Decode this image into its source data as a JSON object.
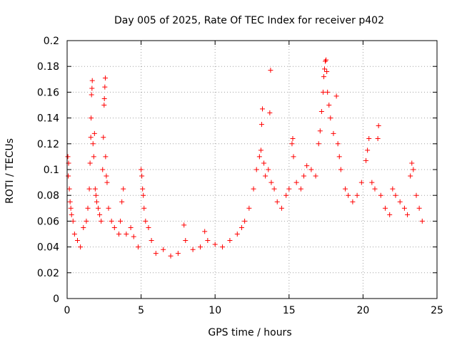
{
  "chart_data": {
    "type": "scatter",
    "title": "Day 005 of 2025, Rate Of TEC Index for receiver p402",
    "xlabel": "GPS time / hours",
    "ylabel": "ROTI / TECUs",
    "xlim": [
      0,
      25
    ],
    "ylim": [
      0,
      0.2
    ],
    "x_ticks": [
      "0",
      "5",
      "10",
      "15",
      "20",
      "25"
    ],
    "y_ticks": [
      "0",
      "0.02",
      "0.04",
      "0.06",
      "0.08",
      "0.1",
      "0.12",
      "0.14",
      "0.16",
      "0.18",
      "0.2"
    ],
    "grid": true,
    "marker": "plus",
    "color": "#ff0000",
    "series": [
      {
        "points": [
          [
            0.05,
            0.11
          ],
          [
            0.08,
            0.095
          ],
          [
            0.1,
            0.105
          ],
          [
            0.15,
            0.085
          ],
          [
            0.2,
            0.075
          ],
          [
            0.25,
            0.07
          ],
          [
            0.3,
            0.065
          ],
          [
            0.4,
            0.06
          ],
          [
            0.5,
            0.05
          ],
          [
            0.7,
            0.045
          ],
          [
            0.9,
            0.04
          ],
          [
            1.1,
            0.055
          ],
          [
            1.3,
            0.06
          ],
          [
            1.4,
            0.07
          ],
          [
            1.5,
            0.085
          ],
          [
            1.55,
            0.105
          ],
          [
            1.6,
            0.125
          ],
          [
            1.62,
            0.14
          ],
          [
            1.65,
            0.158
          ],
          [
            1.68,
            0.163
          ],
          [
            1.7,
            0.169
          ],
          [
            1.75,
            0.12
          ],
          [
            1.8,
            0.11
          ],
          [
            1.85,
            0.128
          ],
          [
            1.9,
            0.085
          ],
          [
            1.95,
            0.08
          ],
          [
            2.0,
            0.075
          ],
          [
            2.1,
            0.07
          ],
          [
            2.2,
            0.065
          ],
          [
            2.3,
            0.06
          ],
          [
            2.4,
            0.1
          ],
          [
            2.45,
            0.125
          ],
          [
            2.5,
            0.15
          ],
          [
            2.52,
            0.155
          ],
          [
            2.55,
            0.164
          ],
          [
            2.58,
            0.171
          ],
          [
            2.6,
            0.11
          ],
          [
            2.65,
            0.095
          ],
          [
            2.7,
            0.09
          ],
          [
            2.8,
            0.07
          ],
          [
            3.0,
            0.06
          ],
          [
            3.2,
            0.055
          ],
          [
            3.5,
            0.05
          ],
          [
            3.6,
            0.06
          ],
          [
            3.7,
            0.075
          ],
          [
            3.8,
            0.085
          ],
          [
            4.0,
            0.05
          ],
          [
            4.3,
            0.055
          ],
          [
            4.5,
            0.048
          ],
          [
            4.8,
            0.04
          ],
          [
            5.0,
            0.1
          ],
          [
            5.05,
            0.095
          ],
          [
            5.1,
            0.085
          ],
          [
            5.15,
            0.08
          ],
          [
            5.2,
            0.07
          ],
          [
            5.3,
            0.06
          ],
          [
            5.5,
            0.055
          ],
          [
            5.7,
            0.045
          ],
          [
            6.0,
            0.035
          ],
          [
            6.5,
            0.038
          ],
          [
            7.0,
            0.033
          ],
          [
            7.5,
            0.035
          ],
          [
            7.9,
            0.057
          ],
          [
            8.0,
            0.045
          ],
          [
            8.5,
            0.038
          ],
          [
            9.0,
            0.04
          ],
          [
            9.3,
            0.052
          ],
          [
            9.5,
            0.045
          ],
          [
            10.0,
            0.042
          ],
          [
            10.5,
            0.04
          ],
          [
            11.0,
            0.045
          ],
          [
            11.5,
            0.05
          ],
          [
            11.8,
            0.055
          ],
          [
            12.0,
            0.06
          ],
          [
            12.3,
            0.07
          ],
          [
            12.6,
            0.085
          ],
          [
            12.8,
            0.1
          ],
          [
            13.0,
            0.11
          ],
          [
            13.1,
            0.115
          ],
          [
            13.15,
            0.135
          ],
          [
            13.2,
            0.147
          ],
          [
            13.3,
            0.105
          ],
          [
            13.4,
            0.095
          ],
          [
            13.6,
            0.1
          ],
          [
            13.7,
            0.144
          ],
          [
            13.75,
            0.177
          ],
          [
            13.8,
            0.09
          ],
          [
            14.0,
            0.085
          ],
          [
            14.2,
            0.075
          ],
          [
            14.5,
            0.07
          ],
          [
            14.8,
            0.08
          ],
          [
            15.0,
            0.085
          ],
          [
            15.2,
            0.12
          ],
          [
            15.25,
            0.124
          ],
          [
            15.3,
            0.11
          ],
          [
            15.5,
            0.09
          ],
          [
            15.8,
            0.085
          ],
          [
            16.0,
            0.095
          ],
          [
            16.2,
            0.103
          ],
          [
            16.5,
            0.1
          ],
          [
            16.8,
            0.095
          ],
          [
            17.0,
            0.12
          ],
          [
            17.1,
            0.13
          ],
          [
            17.2,
            0.145
          ],
          [
            17.3,
            0.16
          ],
          [
            17.35,
            0.172
          ],
          [
            17.4,
            0.178
          ],
          [
            17.45,
            0.184
          ],
          [
            17.5,
            0.185
          ],
          [
            17.55,
            0.176
          ],
          [
            17.6,
            0.16
          ],
          [
            17.7,
            0.15
          ],
          [
            17.8,
            0.14
          ],
          [
            18.0,
            0.128
          ],
          [
            18.2,
            0.157
          ],
          [
            18.3,
            0.12
          ],
          [
            18.4,
            0.11
          ],
          [
            18.5,
            0.1
          ],
          [
            18.8,
            0.085
          ],
          [
            19.0,
            0.08
          ],
          [
            19.3,
            0.075
          ],
          [
            19.6,
            0.08
          ],
          [
            19.9,
            0.09
          ],
          [
            20.2,
            0.107
          ],
          [
            20.3,
            0.115
          ],
          [
            20.4,
            0.124
          ],
          [
            20.6,
            0.09
          ],
          [
            20.8,
            0.085
          ],
          [
            21.0,
            0.124
          ],
          [
            21.05,
            0.134
          ],
          [
            21.2,
            0.08
          ],
          [
            21.5,
            0.07
          ],
          [
            21.8,
            0.065
          ],
          [
            22.0,
            0.085
          ],
          [
            22.2,
            0.08
          ],
          [
            22.5,
            0.075
          ],
          [
            22.8,
            0.07
          ],
          [
            23.0,
            0.065
          ],
          [
            23.2,
            0.095
          ],
          [
            23.3,
            0.105
          ],
          [
            23.4,
            0.1
          ],
          [
            23.6,
            0.08
          ],
          [
            23.8,
            0.07
          ],
          [
            24.0,
            0.06
          ]
        ]
      }
    ]
  }
}
